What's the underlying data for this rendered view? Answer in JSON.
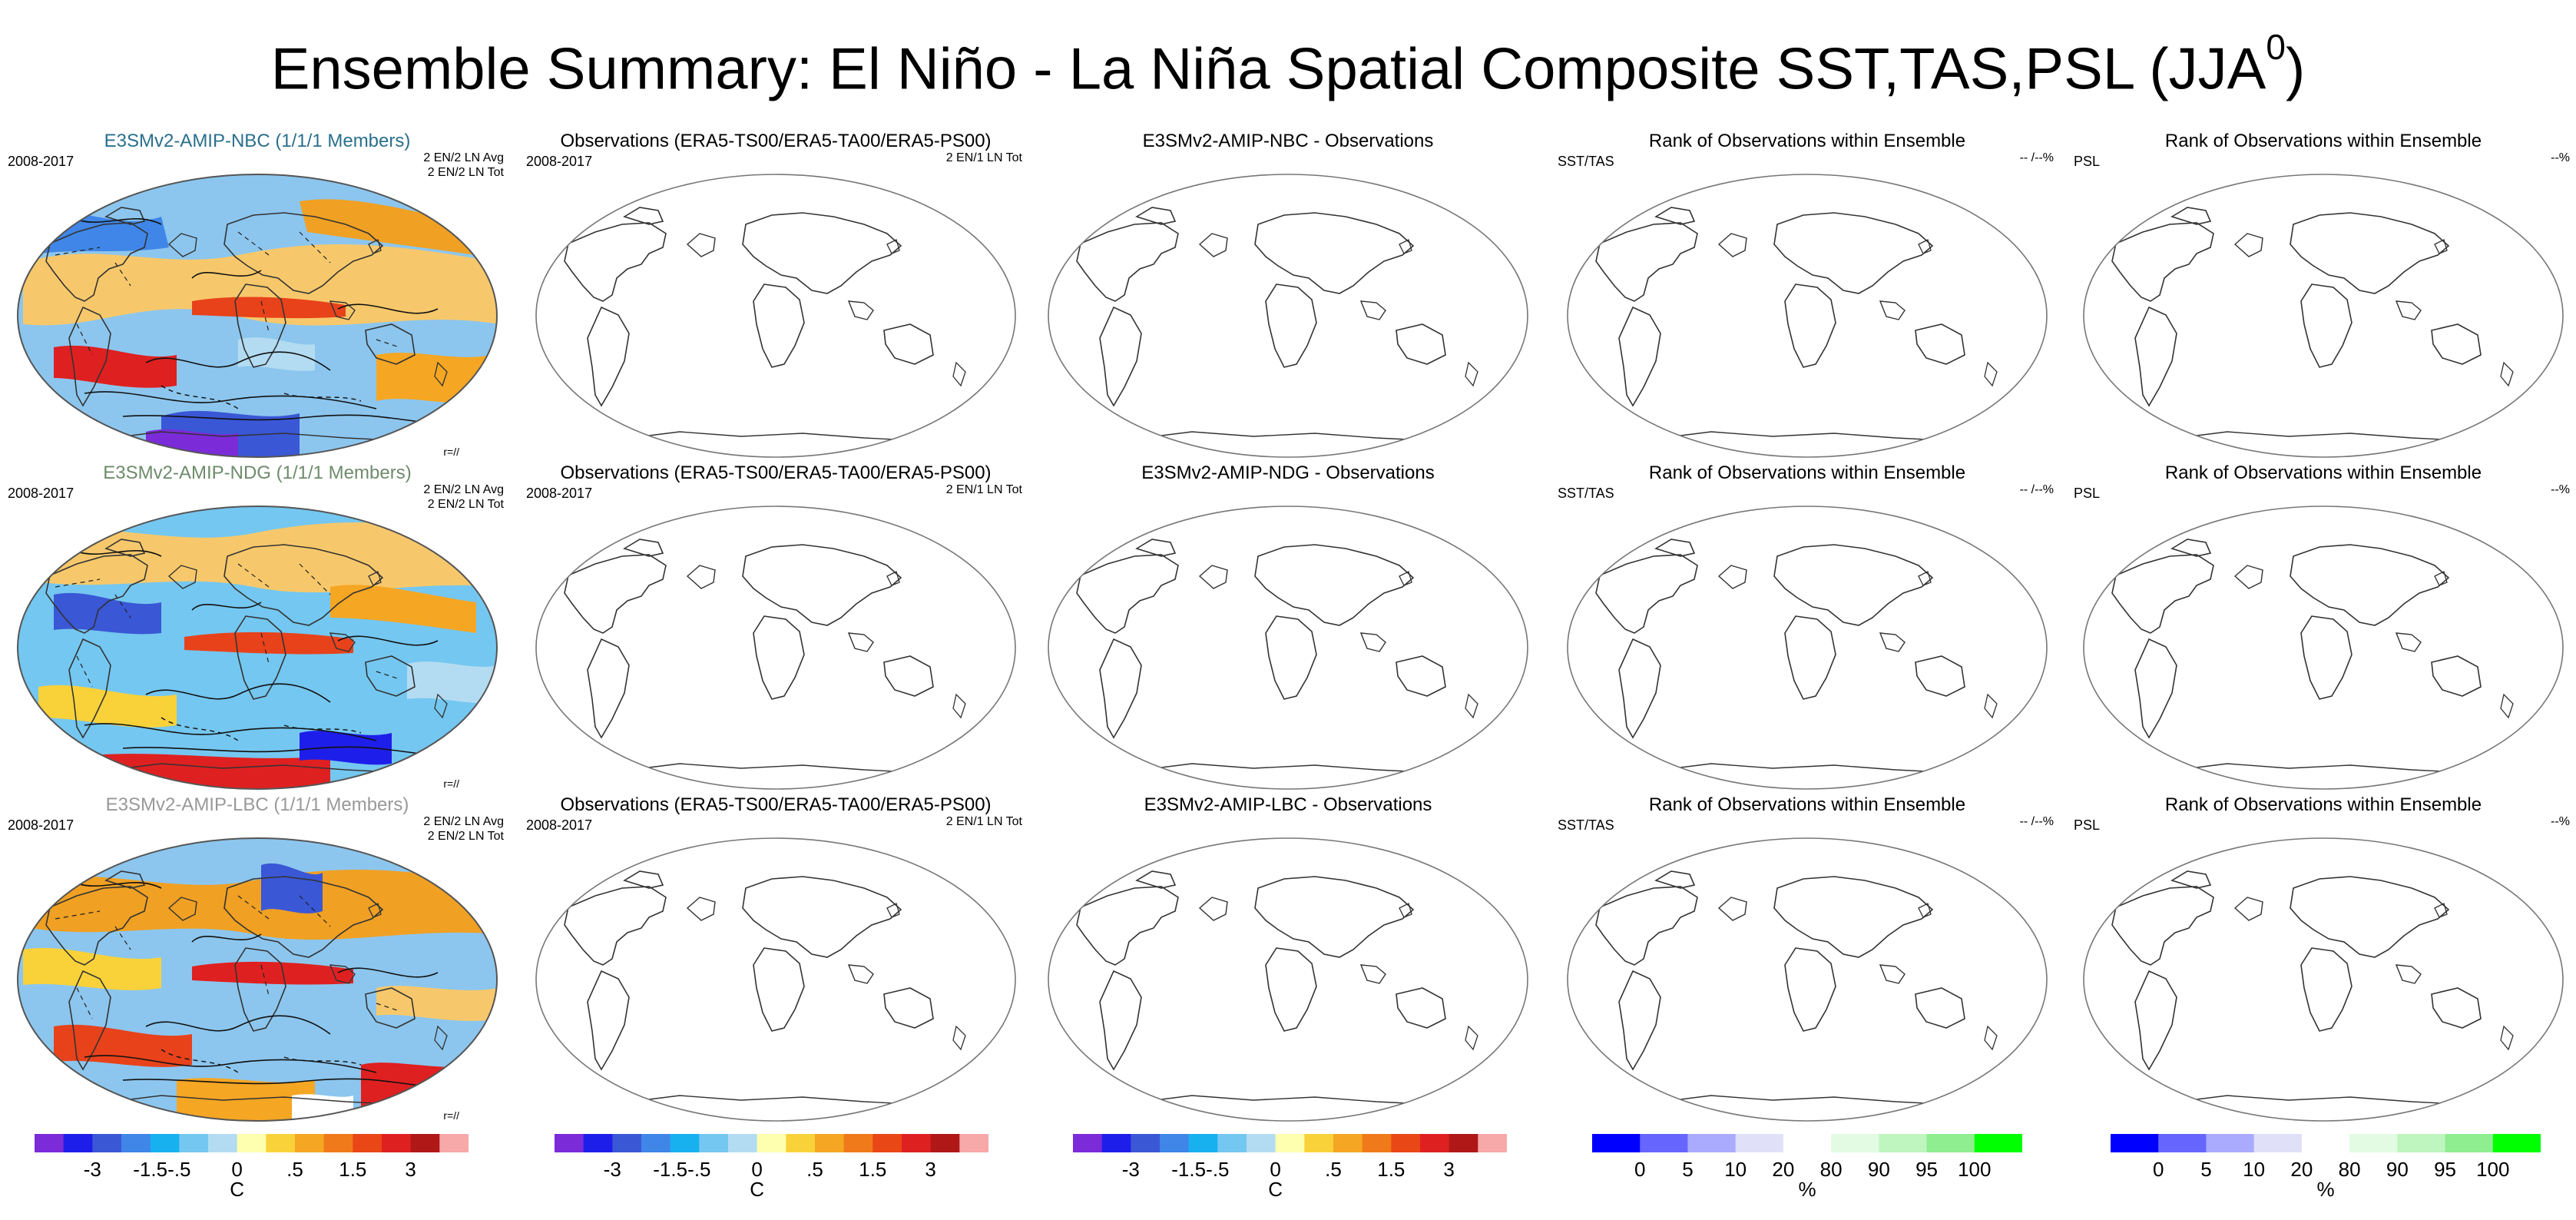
{
  "title": {
    "main": "Ensemble Summary: El Niño - La Niña Spatial Composite SST,TAS,PSL (JJA",
    "sup": "0",
    "close": ")"
  },
  "colors": {
    "nbc_title": "#2a6f8c",
    "ndg_title": "#6e8b6b",
    "lbc_title": "#999999",
    "temp_scale": [
      "#7b2bd8",
      "#1e1eea",
      "#3a57d6",
      "#3f86e8",
      "#18b1f0",
      "#74c7f0",
      "#b3dcf2",
      "#ffffb0",
      "#f9d23a",
      "#f5a623",
      "#f07a1a",
      "#ea4716",
      "#df2020",
      "#b01818",
      "#f7a8a8"
    ],
    "rank_scale": [
      "#0000ff",
      "#6666ff",
      "#aaaaff",
      "#e0e0f8",
      "#ffffff",
      "#e3fbe3",
      "#bff5bf",
      "#8fee8f",
      "#00ff00"
    ]
  },
  "rows": [
    {
      "model_title": "E3SMv2-AMIP-NBC (1/1/1 Members)",
      "period": "2008-2017",
      "stats": [
        "2 EN/2 LN Avg",
        "2 EN/2 LN Tot"
      ],
      "contour_tag": "r=//",
      "obs_title": "Observations (ERA5-TS00/ERA5-TA00/ERA5-PS00)",
      "obs_period": "2008-2017",
      "obs_stats": "2 EN/1 LN Tot",
      "diff_title": "E3SMv2-AMIP-NBC - Observations",
      "rank1_title": "Rank of Observations within Ensemble",
      "rank1_left": "SST/TAS",
      "rank1_right": "-- /--%",
      "rank2_title": "Rank of Observations within Ensemble",
      "rank2_left": "PSL",
      "rank2_right": "--%"
    },
    {
      "model_title": "E3SMv2-AMIP-NDG (1/1/1 Members)",
      "period": "2008-2017",
      "stats": [
        "2 EN/2 LN Avg",
        "2 EN/2 LN Tot"
      ],
      "contour_tag": "r=//",
      "obs_title": "Observations (ERA5-TS00/ERA5-TA00/ERA5-PS00)",
      "obs_period": "2008-2017",
      "obs_stats": "2 EN/1 LN Tot",
      "diff_title": "E3SMv2-AMIP-NDG - Observations",
      "rank1_title": "Rank of Observations within Ensemble",
      "rank1_left": "SST/TAS",
      "rank1_right": "-- /--%",
      "rank2_title": "Rank of Observations within Ensemble",
      "rank2_left": "PSL",
      "rank2_right": "--%"
    },
    {
      "model_title": "E3SMv2-AMIP-LBC (1/1/1 Members)",
      "period": "2008-2017",
      "stats": [
        "2 EN/2 LN Avg",
        "2 EN/2 LN Tot"
      ],
      "contour_tag": "r=//",
      "obs_title": "Observations (ERA5-TS00/ERA5-TA00/ERA5-PS00)",
      "obs_period": "2008-2017",
      "obs_stats": "2 EN/1 LN Tot",
      "diff_title": "E3SMv2-AMIP-LBC - Observations",
      "rank1_title": "Rank of Observations within Ensemble",
      "rank1_left": "SST/TAS",
      "rank1_right": "-- /--%",
      "rank2_title": "Rank of Observations within Ensemble",
      "rank2_left": "PSL",
      "rank2_right": "--%"
    }
  ],
  "colorbars": {
    "temp": {
      "ticks": [
        "-3",
        "-1.5",
        "-.5",
        "0",
        ".5",
        "1.5",
        "3"
      ],
      "unit": "C"
    },
    "rank": {
      "ticks": [
        "0",
        "5",
        "10",
        "20",
        "80",
        "90",
        "95",
        "100"
      ],
      "unit": "%"
    }
  }
}
